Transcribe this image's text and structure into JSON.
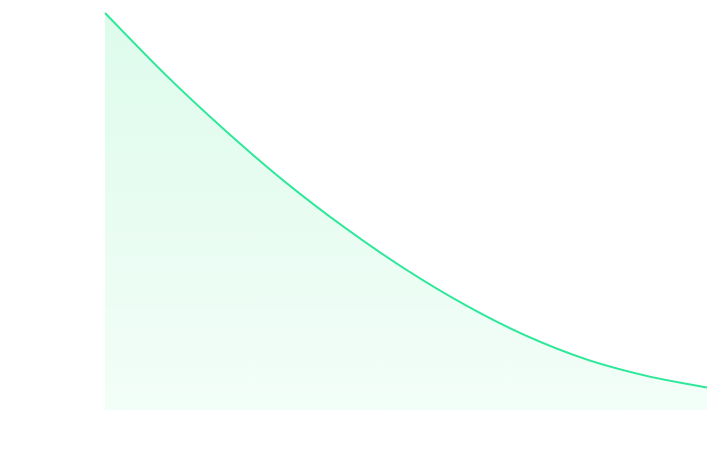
{
  "chart_data": {
    "type": "area",
    "title": "",
    "xlabel": "",
    "ylabel": "",
    "grid": false,
    "axes_visible": false,
    "line_color": "#2ee89a",
    "fill_color": "#dcfbeb",
    "x": [
      0,
      0.1,
      0.2,
      0.3,
      0.4,
      0.5,
      0.6,
      0.7,
      0.8,
      0.9,
      1.0
    ],
    "series": [
      {
        "values": [
          1.0,
          0.836,
          0.686,
          0.548,
          0.425,
          0.315,
          0.219,
          0.138,
          0.075,
          0.031,
          0.0
        ]
      }
    ],
    "xlim": [
      0,
      1
    ],
    "ylim": [
      -0.06,
      1.0
    ]
  }
}
